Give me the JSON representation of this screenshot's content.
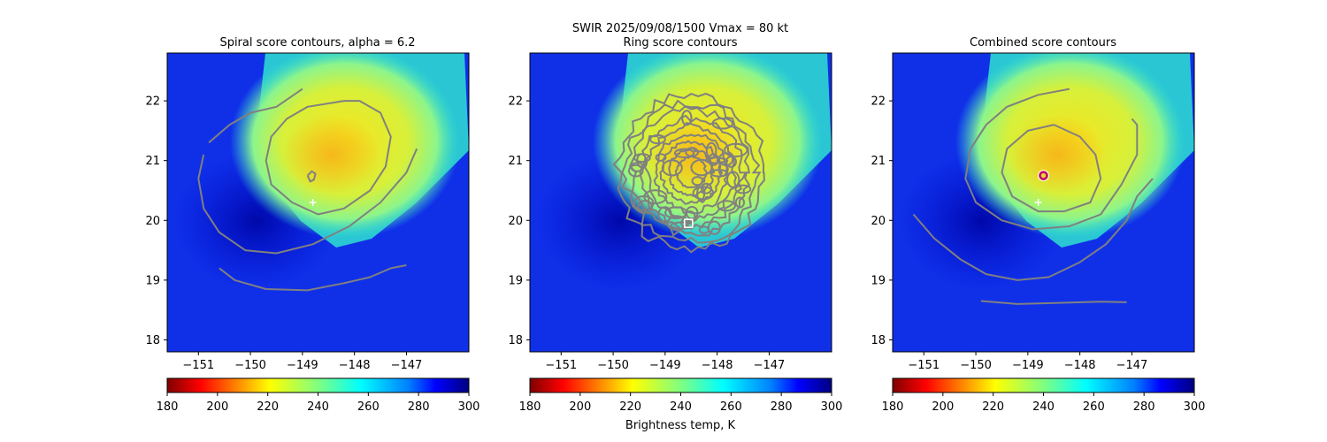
{
  "suptitle": "SWIR  2025/09/08/1500    Vmax = 80 kt",
  "chart_data": [
    {
      "type": "heatmap",
      "title": "Spiral score contours, alpha =  6.2",
      "xlim": [
        -151.6,
        -145.8
      ],
      "ylim": [
        17.8,
        22.8
      ],
      "xticks": [
        -151,
        -150,
        -149,
        -148,
        -147
      ],
      "xtick_labels": [
        "−151",
        "−150",
        "−149",
        "−148",
        "−147"
      ],
      "yticks": [
        18,
        19,
        20,
        21,
        22
      ],
      "ytick_labels": [
        "18",
        "19",
        "20",
        "21",
        "22"
      ],
      "best_track_center": [
        -148.8,
        20.3
      ],
      "contours": [
        [
          [
            -148.2,
            22.0
          ],
          [
            -148.9,
            21.9
          ],
          [
            -149.3,
            21.7
          ],
          [
            -149.6,
            21.4
          ],
          [
            -149.7,
            21.0
          ],
          [
            -149.6,
            20.6
          ],
          [
            -149.2,
            20.3
          ],
          [
            -148.7,
            20.1
          ],
          [
            -148.2,
            20.2
          ],
          [
            -147.7,
            20.5
          ],
          [
            -147.4,
            20.9
          ],
          [
            -147.3,
            21.4
          ],
          [
            -147.5,
            21.8
          ],
          [
            -147.9,
            22.0
          ],
          [
            -148.2,
            22.0
          ]
        ],
        [
          [
            -148.9,
            20.75
          ],
          [
            -148.85,
            20.65
          ],
          [
            -148.78,
            20.68
          ],
          [
            -148.75,
            20.78
          ],
          [
            -148.82,
            20.82
          ],
          [
            -148.9,
            20.75
          ]
        ],
        [
          [
            -149.0,
            22.2
          ],
          [
            -149.5,
            21.9
          ],
          [
            -150.0,
            21.8
          ],
          [
            -150.4,
            21.6
          ],
          [
            -150.8,
            21.3
          ]
        ],
        [
          [
            -150.9,
            21.1
          ],
          [
            -151.0,
            20.7
          ],
          [
            -150.9,
            20.2
          ],
          [
            -150.6,
            19.8
          ],
          [
            -150.1,
            19.5
          ],
          [
            -149.5,
            19.45
          ],
          [
            -148.8,
            19.6
          ],
          [
            -148.1,
            19.9
          ],
          [
            -147.5,
            20.3
          ],
          [
            -147.0,
            20.8
          ],
          [
            -146.8,
            21.2
          ]
        ],
        [
          [
            -150.6,
            19.2
          ],
          [
            -150.3,
            19.0
          ],
          [
            -149.7,
            18.85
          ],
          [
            -148.9,
            18.83
          ],
          [
            -148.2,
            18.95
          ],
          [
            -147.7,
            19.05
          ],
          [
            -147.3,
            19.2
          ],
          [
            -147.0,
            19.25
          ]
        ]
      ],
      "marker": null,
      "colorbar": {
        "ticks": [
          180,
          200,
          220,
          240,
          260,
          280,
          300
        ],
        "labels": [
          "180",
          "200",
          "220",
          "240",
          "260",
          "280",
          "300"
        ],
        "range": [
          180,
          300
        ],
        "label": ""
      }
    },
    {
      "type": "heatmap",
      "title": "Ring score contours",
      "xlim": [
        -151.6,
        -145.8
      ],
      "ylim": [
        17.8,
        22.8
      ],
      "xticks": [
        -151,
        -150,
        -149,
        -148,
        -147
      ],
      "xtick_labels": [
        "−151",
        "−150",
        "−149",
        "−148",
        "−147"
      ],
      "yticks": [
        18,
        19,
        20,
        21,
        22
      ],
      "ytick_labels": [
        "18",
        "19",
        "20",
        "21",
        "22"
      ],
      "best_track_center": null,
      "ring": {
        "center": [
          -148.5,
          20.8
        ],
        "radius_deg_x": 1.4,
        "radius_deg_y": 1.3
      },
      "contours": [],
      "marker": {
        "shape": "square",
        "position": [
          -148.55,
          19.95
        ]
      },
      "colorbar": {
        "ticks": [
          180,
          200,
          220,
          240,
          260,
          280,
          300
        ],
        "labels": [
          "180",
          "200",
          "220",
          "240",
          "260",
          "280",
          "300"
        ],
        "range": [
          180,
          300
        ],
        "label": "Brightness temp, K"
      }
    },
    {
      "type": "heatmap",
      "title": "Combined score contours",
      "xlim": [
        -151.6,
        -145.8
      ],
      "ylim": [
        17.8,
        22.8
      ],
      "xticks": [
        -151,
        -150,
        -149,
        -148,
        -147
      ],
      "xtick_labels": [
        "−151",
        "−150",
        "−149",
        "−148",
        "−147"
      ],
      "yticks": [
        18,
        19,
        20,
        21,
        22
      ],
      "ytick_labels": [
        "18",
        "19",
        "20",
        "21",
        "22"
      ],
      "best_track_center": [
        -148.8,
        20.3
      ],
      "contours": [
        [
          [
            -148.5,
            21.6
          ],
          [
            -149.0,
            21.5
          ],
          [
            -149.4,
            21.2
          ],
          [
            -149.5,
            20.8
          ],
          [
            -149.3,
            20.4
          ],
          [
            -148.8,
            20.15
          ],
          [
            -148.3,
            20.15
          ],
          [
            -147.8,
            20.3
          ],
          [
            -147.6,
            20.7
          ],
          [
            -147.7,
            21.1
          ],
          [
            -148.0,
            21.4
          ],
          [
            -148.5,
            21.6
          ]
        ],
        [
          [
            -148.2,
            22.2
          ],
          [
            -148.8,
            22.1
          ],
          [
            -149.4,
            21.9
          ],
          [
            -149.8,
            21.6
          ],
          [
            -150.1,
            21.2
          ],
          [
            -150.2,
            20.7
          ],
          [
            -150.0,
            20.3
          ],
          [
            -149.5,
            20.0
          ],
          [
            -148.9,
            19.85
          ],
          [
            -148.2,
            19.9
          ],
          [
            -147.6,
            20.1
          ],
          [
            -147.2,
            20.6
          ],
          [
            -146.9,
            21.1
          ],
          [
            -146.9,
            21.6
          ],
          [
            -147.0,
            21.7
          ]
        ],
        [
          [
            -151.2,
            20.1
          ],
          [
            -150.8,
            19.7
          ],
          [
            -150.3,
            19.35
          ],
          [
            -149.8,
            19.1
          ],
          [
            -149.2,
            19.0
          ],
          [
            -148.6,
            19.05
          ],
          [
            -148.0,
            19.3
          ],
          [
            -147.5,
            19.6
          ],
          [
            -147.1,
            20.0
          ],
          [
            -146.9,
            20.4
          ],
          [
            -146.6,
            20.7
          ]
        ],
        [
          [
            -149.9,
            18.65
          ],
          [
            -149.2,
            18.6
          ],
          [
            -148.4,
            18.62
          ],
          [
            -147.6,
            18.64
          ],
          [
            -147.1,
            18.63
          ]
        ]
      ],
      "marker": {
        "shape": "circle",
        "position": [
          -148.7,
          20.75
        ]
      },
      "colorbar": {
        "ticks": [
          180,
          200,
          220,
          240,
          260,
          280,
          300
        ],
        "labels": [
          "180",
          "200",
          "220",
          "240",
          "260",
          "280",
          "300"
        ],
        "range": [
          180,
          300
        ],
        "label": ""
      }
    }
  ]
}
